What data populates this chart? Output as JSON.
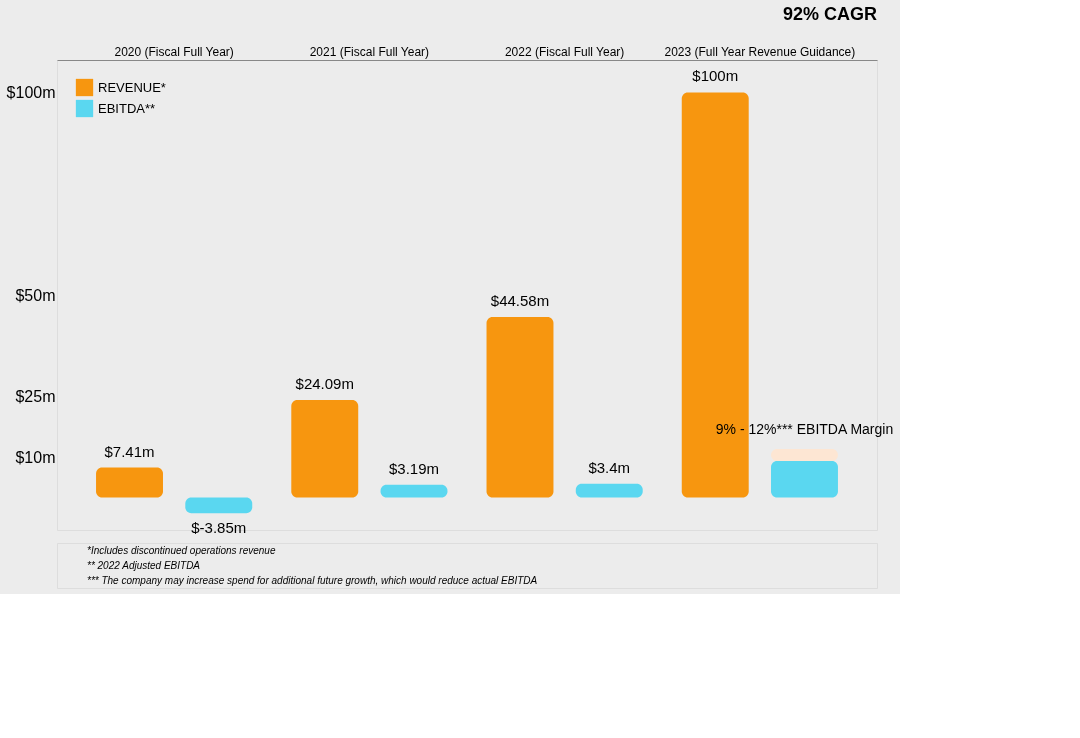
{
  "chart_data": {
    "type": "bar",
    "categories": [
      "2020 (Fiscal Full Year)",
      "2021 (Fiscal Full Year)",
      "2022 (Fiscal Full Year)",
      "2023 (Full Year Revenue Guidance)"
    ],
    "series": [
      {
        "name": "REVENUE*",
        "color": "#f7960f",
        "values": [
          7.41,
          24.09,
          44.58,
          100
        ],
        "value_labels": [
          "$7.41m",
          "$24.09m",
          "$44.58m",
          "$100m"
        ]
      },
      {
        "name": "EBITDA**",
        "color": "#5ad7f0",
        "values": [
          -3.85,
          3.19,
          3.4,
          9
        ],
        "value_labels": [
          "$-3.85m",
          "$3.19m",
          "$3.4m",
          null
        ]
      },
      {
        "color": "#fde6d3",
        "values": [
          null,
          null,
          null,
          3
        ],
        "base": [
          null,
          null,
          null,
          9
        ]
      }
    ],
    "ylim": [
      -8,
      108
    ],
    "yticks": [
      {
        "value": 10,
        "label": "$10m"
      },
      {
        "value": 25,
        "label": "$25m"
      },
      {
        "value": 50,
        "label": "$50m"
      },
      {
        "value": 100,
        "label": "$100m"
      }
    ],
    "legend": "top left",
    "grid": false,
    "annotations": [
      "9% - 12%*** EBITDA Margin",
      "92% CAGR",
      "*Includes discontinued operations revenue",
      "** 2022 Adjusted EBITDA",
      "*** The company may increase spend for additional future growth, which would reduce actual EBITDA"
    ]
  }
}
